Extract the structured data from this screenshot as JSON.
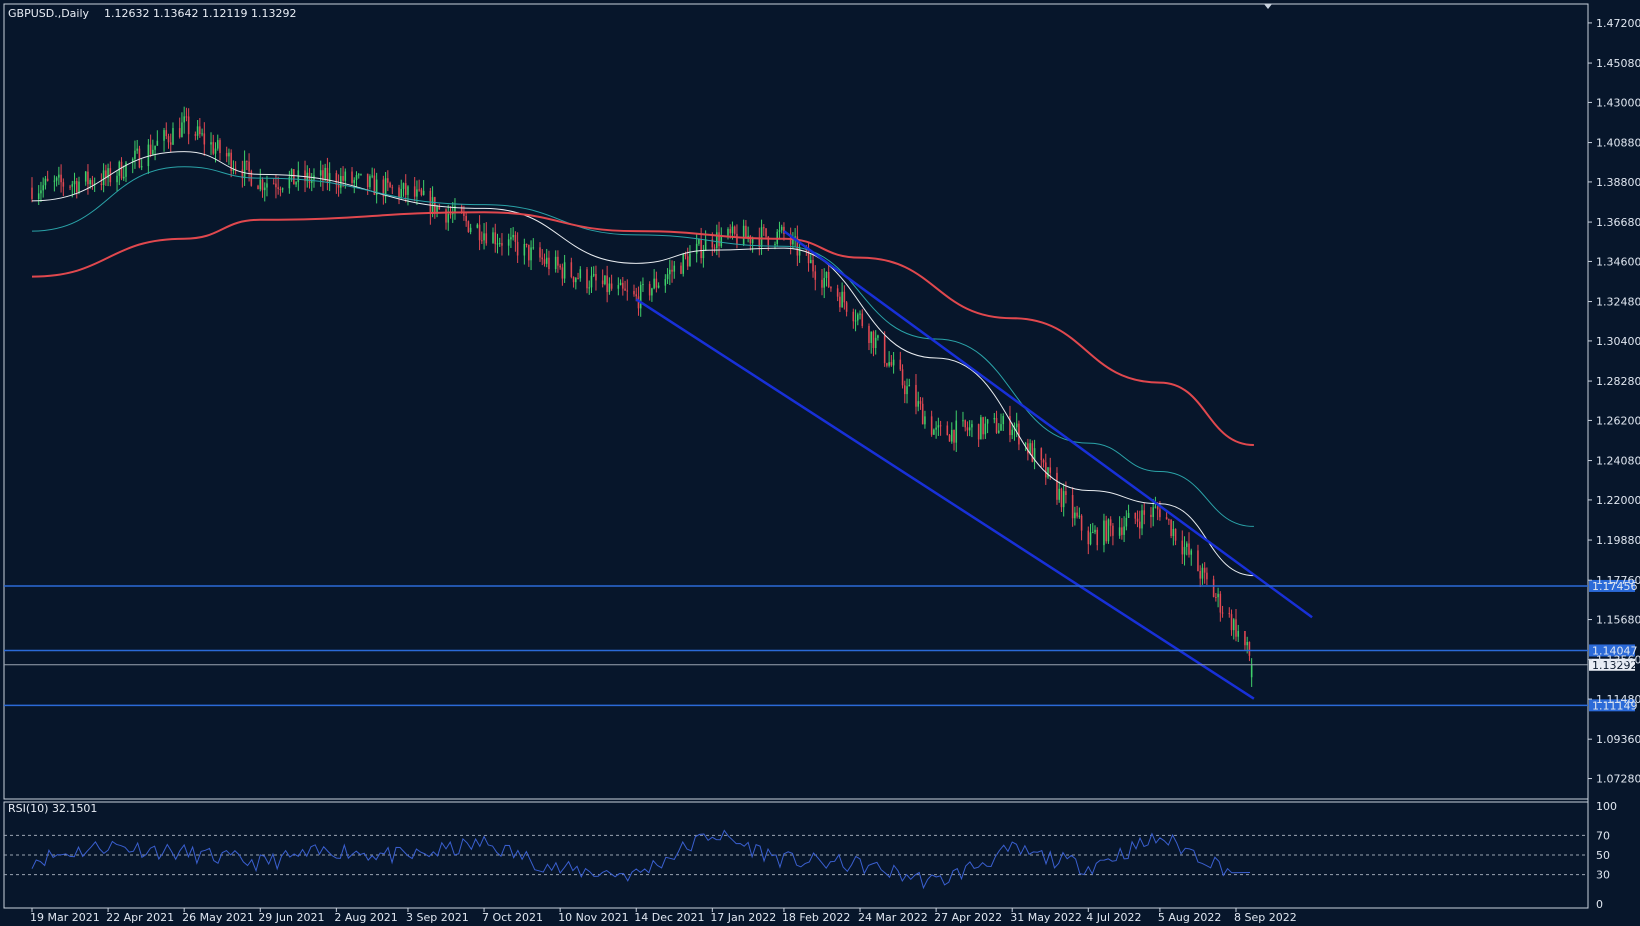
{
  "header": {
    "symbol": "GBPUSD.,Daily",
    "ohlc": "1.12632 1.13642 1.12119 1.13292"
  },
  "rsi_header": "RSI(10) 32.1501",
  "colors": {
    "background": "#07162b",
    "bull": "#3fcf6a",
    "bear": "#e14852",
    "ma_fast": "#e8ecf0",
    "ma_mid": "#2aa3a8",
    "ma_slow": "#e0484e",
    "channel": "#1830d8",
    "level": "#2b6ad8",
    "rsi": "#3a5fcf"
  },
  "chart_data": [
    {
      "type": "candlestick",
      "title": "GBPUSD.,Daily",
      "ylim": [
        1.062,
        1.482
      ],
      "y_ticks": [
        "1.47200",
        "1.45080",
        "1.43000",
        "1.40880",
        "1.38800",
        "1.36680",
        "1.34600",
        "1.32480",
        "1.30400",
        "1.28280",
        "1.26200",
        "1.24080",
        "1.22000",
        "1.19880",
        "1.17760",
        "1.15680",
        "1.13560",
        "1.11480",
        "1.09360",
        "1.07280"
      ],
      "x_labels": [
        "19 Mar 2021",
        "22 Apr 2021",
        "26 May 2021",
        "29 Jun 2021",
        "2 Aug 2021",
        "3 Sep 2021",
        "7 Oct 2021",
        "10 Nov 2021",
        "14 Dec 2021",
        "17 Jan 2022",
        "18 Feb 2022",
        "24 Mar 2022",
        "27 Apr 2022",
        "31 May 2022",
        "4 Jul 2022",
        "5 Aug 2022",
        "8 Sep 2022"
      ],
      "close_path": [
        [
          "19 Mar 2021",
          1.385
        ],
        [
          "22 Apr 2021",
          1.39
        ],
        [
          "26 May 2021",
          1.418
        ],
        [
          "29 Jun 2021",
          1.388
        ],
        [
          "2 Aug 2021",
          1.39
        ],
        [
          "3 Sep 2021",
          1.382
        ],
        [
          "7 Oct 2021",
          1.362
        ],
        [
          "10 Nov 2021",
          1.342
        ],
        [
          "14 Dec 2021",
          1.326
        ],
        [
          "17 Jan 2022",
          1.358
        ],
        [
          "18 Feb 2022",
          1.36
        ],
        [
          "24 Mar 2022",
          1.316
        ],
        [
          "27 Apr 2022",
          1.255
        ],
        [
          "31 May 2022",
          1.26
        ],
        [
          "4 Jul 2022",
          1.2
        ],
        [
          "5 Aug 2022",
          1.215
        ],
        [
          "8 Sep 2022",
          1.152
        ],
        [
          "16 Sep 2022",
          1.1329
        ]
      ],
      "last_candle": {
        "open": 1.12632,
        "high": 1.13642,
        "low": 1.12119,
        "close": 1.13292
      },
      "moving_averages": [
        {
          "color": "white",
          "points": [
            [
              "19 Mar 2021",
              1.378
            ],
            [
              "26 May 2021",
              1.404
            ],
            [
              "29 Jun 2021",
              1.392
            ],
            [
              "7 Oct 2021",
              1.374
            ],
            [
              "14 Dec 2021",
              1.345
            ],
            [
              "17 Jan 2022",
              1.352
            ],
            [
              "18 Feb 2022",
              1.353
            ],
            [
              "27 Apr 2022",
              1.295
            ],
            [
              "4 Jul 2022",
              1.225
            ],
            [
              "5 Aug 2022",
              1.218
            ],
            [
              "16 Sep 2022",
              1.18
            ]
          ]
        },
        {
          "color": "teal",
          "points": [
            [
              "19 Mar 2021",
              1.362
            ],
            [
              "26 May 2021",
              1.396
            ],
            [
              "29 Jun 2021",
              1.39
            ],
            [
              "7 Oct 2021",
              1.376
            ],
            [
              "14 Dec 2021",
              1.36
            ],
            [
              "18 Feb 2022",
              1.354
            ],
            [
              "27 Apr 2022",
              1.305
            ],
            [
              "4 Jul 2022",
              1.25
            ],
            [
              "5 Aug 2022",
              1.235
            ],
            [
              "16 Sep 2022",
              1.206
            ]
          ]
        },
        {
          "color": "red",
          "points": [
            [
              "19 Mar 2021",
              1.338
            ],
            [
              "26 May 2021",
              1.358
            ],
            [
              "29 Jun 2021",
              1.368
            ],
            [
              "7 Oct 2021",
              1.372
            ],
            [
              "14 Dec 2021",
              1.362
            ],
            [
              "18 Feb 2022",
              1.358
            ],
            [
              "24 Mar 2022",
              1.348
            ],
            [
              "31 May 2022",
              1.316
            ],
            [
              "5 Aug 2022",
              1.282
            ],
            [
              "16 Sep 2022",
              1.249
            ]
          ]
        }
      ],
      "channel_lines": [
        {
          "from": [
            "14 Dec 2021",
            1.326
          ],
          "to": [
            "16 Sep 2022",
            1.115
          ]
        },
        {
          "from": [
            "18 Feb 2022",
            1.362
          ],
          "to": [
            "12 Oct 2022",
            1.158
          ]
        }
      ],
      "horizontal_levels": [
        {
          "value": 1.17456,
          "label": "1.17456"
        },
        {
          "value": 1.14047,
          "label": "1.14047"
        },
        {
          "value": 1.11149,
          "label": "1.11149"
        }
      ],
      "current_price": {
        "value": 1.13292,
        "label": "1.13292"
      }
    },
    {
      "type": "line",
      "title": "RSI(10) 32.1501",
      "ylim": [
        0,
        100
      ],
      "y_ticks": [
        "100",
        "70",
        "50",
        "30",
        "0"
      ],
      "levels": [
        70,
        50,
        30
      ],
      "x_labels": [
        "19 Mar 2021",
        "22 Apr 2021",
        "26 May 2021",
        "29 Jun 2021",
        "2 Aug 2021",
        "3 Sep 2021",
        "7 Oct 2021",
        "10 Nov 2021",
        "14 Dec 2021",
        "17 Jan 2022",
        "18 Feb 2022",
        "24 Mar 2022",
        "27 Apr 2022",
        "31 May 2022",
        "4 Jul 2022",
        "5 Aug 2022",
        "8 Sep 2022"
      ],
      "values": [
        45,
        60,
        52,
        42,
        55,
        48,
        62,
        35,
        30,
        72,
        45,
        40,
        22,
        55,
        38,
        68,
        32
      ],
      "last_value": 32.1501
    }
  ]
}
